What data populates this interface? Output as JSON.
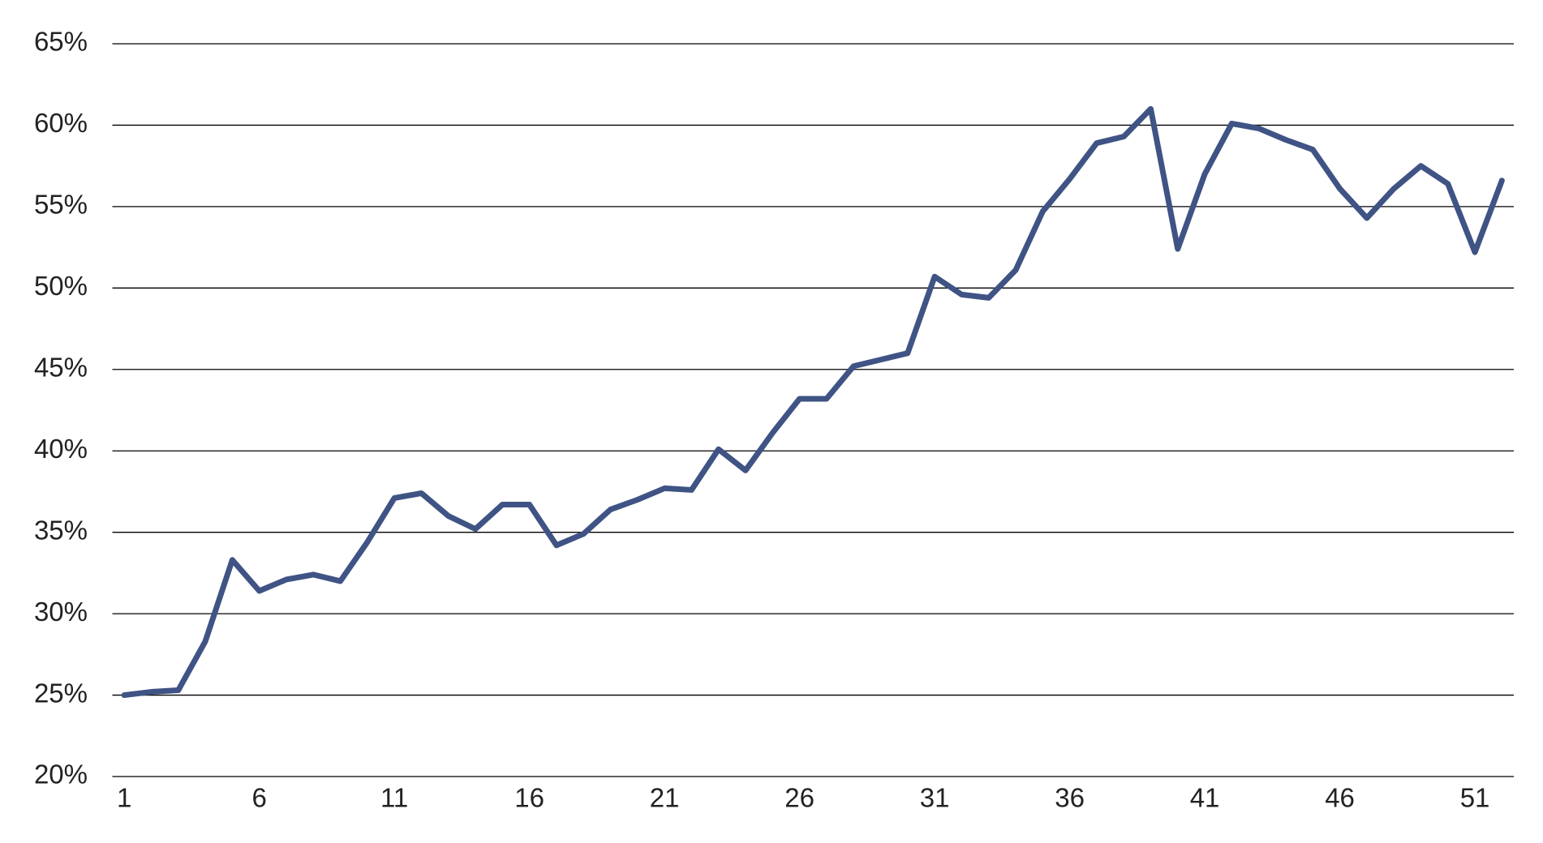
{
  "chart_data": {
    "type": "line",
    "x": [
      1,
      2,
      3,
      4,
      5,
      6,
      7,
      8,
      9,
      10,
      11,
      12,
      13,
      14,
      15,
      16,
      17,
      18,
      19,
      20,
      21,
      22,
      23,
      24,
      25,
      26,
      27,
      28,
      29,
      30,
      31,
      32,
      33,
      34,
      35,
      36,
      37,
      38,
      39,
      40,
      41,
      42,
      43,
      44,
      45,
      46,
      47,
      48,
      49,
      50,
      51,
      52
    ],
    "series": [
      {
        "color": "#3f5384",
        "values": [
          25.0,
          25.2,
          25.3,
          28.3,
          33.3,
          31.4,
          32.1,
          32.4,
          32.0,
          34.4,
          37.1,
          37.4,
          36.0,
          35.2,
          36.7,
          36.7,
          34.2,
          34.9,
          36.4,
          37.0,
          37.7,
          37.6,
          40.1,
          38.8,
          41.1,
          43.2,
          43.2,
          45.2,
          45.6,
          46.0,
          50.7,
          49.6,
          49.4,
          51.1,
          54.7,
          56.7,
          58.9,
          59.3,
          61.0,
          52.4,
          57.0,
          60.1,
          59.8,
          59.1,
          58.5,
          56.1,
          54.3,
          56.1,
          57.5,
          56.4,
          52.2,
          56.6
        ]
      }
    ],
    "xlim": [
      0.56,
      52.44
    ],
    "xticks": [
      1,
      6,
      11,
      16,
      21,
      26,
      31,
      36,
      41,
      46,
      51
    ],
    "ylim": [
      20,
      65
    ],
    "yticks": [
      {
        "value": 20,
        "label": "20%"
      },
      {
        "value": 25,
        "label": "25%"
      },
      {
        "value": 30,
        "label": "30%"
      },
      {
        "value": 35,
        "label": "35%"
      },
      {
        "value": 40,
        "label": "40%"
      },
      {
        "value": 45,
        "label": "45%"
      },
      {
        "value": 50,
        "label": "50%"
      },
      {
        "value": 55,
        "label": "55%"
      },
      {
        "value": 60,
        "label": "60%"
      },
      {
        "value": 65,
        "label": "65%"
      }
    ],
    "grid": true
  }
}
